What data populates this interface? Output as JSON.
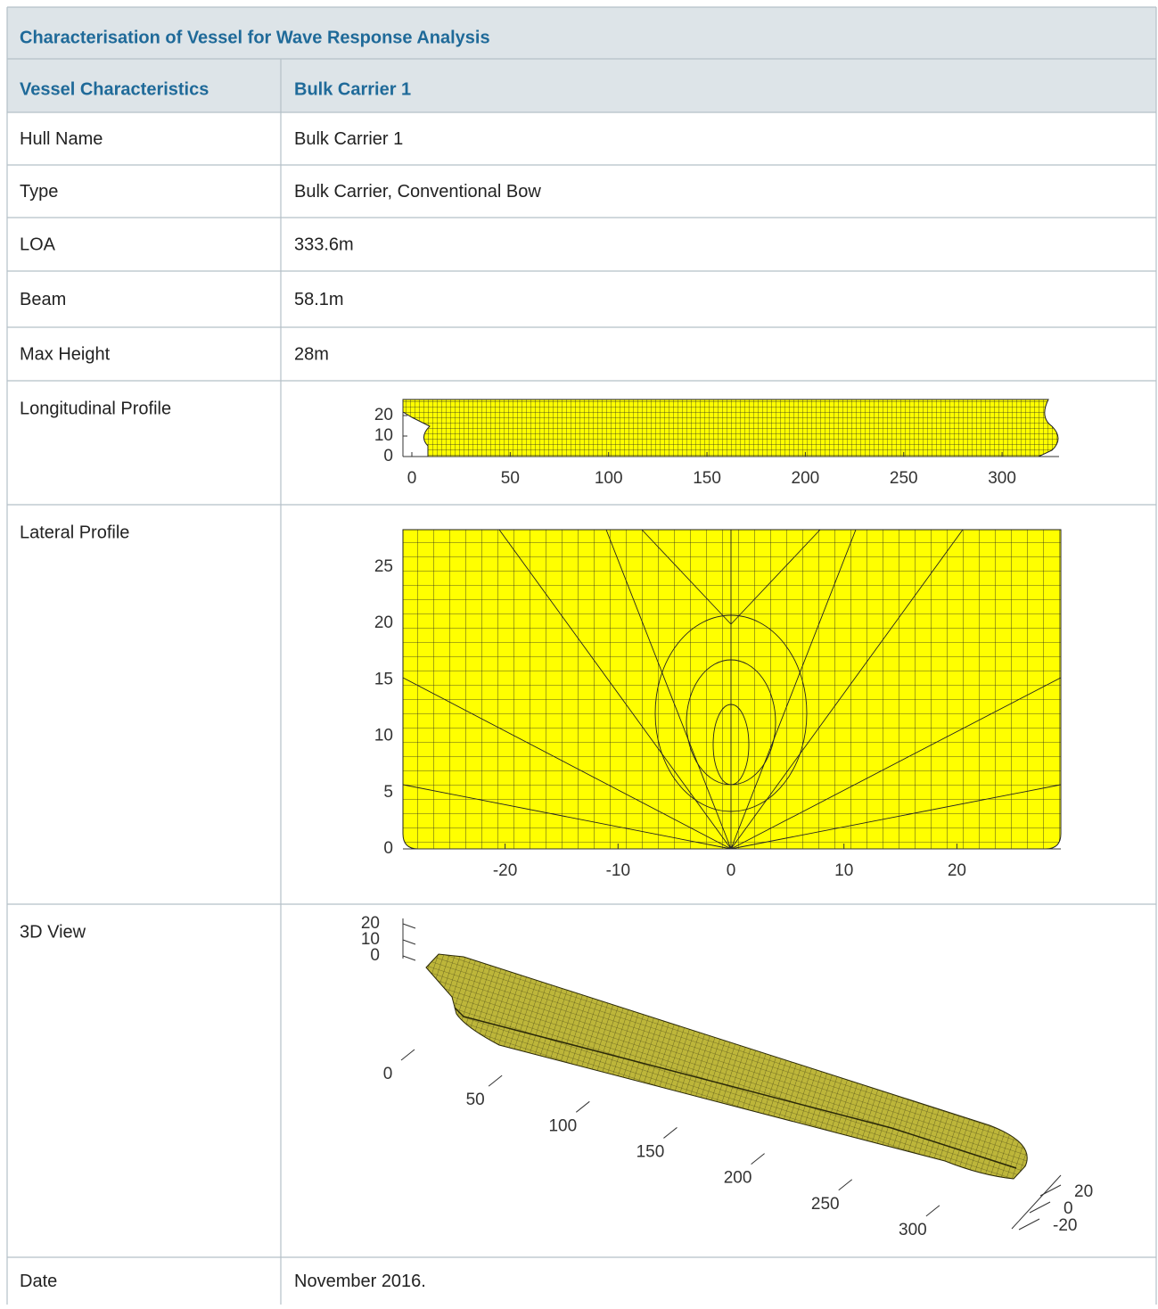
{
  "title": "Characterisation of Vessel for Wave Response Analysis",
  "header": [
    "Vessel Characteristics",
    "Bulk Carrier 1"
  ],
  "rows": [
    {
      "label": "Hull Name",
      "value": "Bulk Carrier 1"
    },
    {
      "label": "Type",
      "value": "Bulk Carrier, Conventional Bow"
    },
    {
      "label": "LOA",
      "value": "333.6m"
    },
    {
      "label": "Beam",
      "value": "58.1m"
    },
    {
      "label": "Max Height",
      "value": "28m"
    },
    {
      "label": "Longitudinal Profile"
    },
    {
      "label": "Lateral Profile"
    },
    {
      "label": "3D View"
    },
    {
      "label": "Date",
      "value": "November 2016."
    }
  ],
  "figures": {
    "longitudinal": {
      "xticks": [
        0,
        50,
        100,
        150,
        200,
        250,
        300
      ],
      "yticks": [
        0,
        10,
        20
      ]
    },
    "lateral": {
      "xticks": [
        -20,
        -10,
        0,
        10,
        20
      ],
      "yticks": [
        0,
        5,
        10,
        15,
        20,
        25
      ]
    },
    "view3d": {
      "xticks": [
        0,
        50,
        100,
        150,
        200,
        250,
        300
      ],
      "yticks": [
        -20,
        0,
        20
      ],
      "zticks": [
        0,
        10,
        20
      ]
    }
  }
}
